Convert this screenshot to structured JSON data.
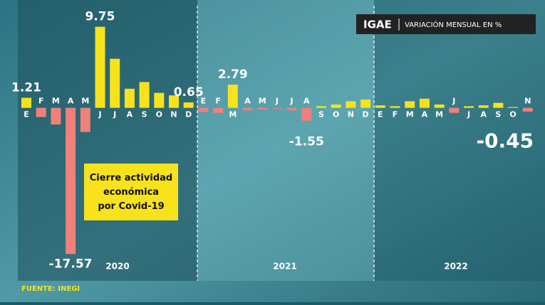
{
  "chart_data": {
    "type": "bar",
    "title": "IGAE",
    "subtitle": "VARIACIÓN MENSUAL EN %",
    "annotation": "Cierre actividad económica por Covid-19",
    "source": "FUENTE: INEGI",
    "groups": [
      "2020",
      "2021",
      "2022"
    ],
    "categories": [
      "E",
      "F",
      "M",
      "A",
      "M",
      "J",
      "J",
      "A",
      "S",
      "O",
      "N",
      "D",
      "E",
      "F",
      "M",
      "A",
      "M",
      "J",
      "J",
      "A",
      "S",
      "O",
      "N",
      "D",
      "E",
      "F",
      "M",
      "A",
      "M",
      "J",
      "J",
      "A",
      "S",
      "O",
      "N"
    ],
    "values": [
      1.21,
      -1.1,
      -2.0,
      -17.57,
      -2.9,
      9.75,
      5.9,
      2.3,
      3.1,
      1.8,
      1.5,
      0.65,
      -0.5,
      -0.6,
      2.79,
      -0.3,
      -0.2,
      -0.1,
      -0.3,
      -1.55,
      0.2,
      0.4,
      0.8,
      1.0,
      0.3,
      0.2,
      0.8,
      1.1,
      0.4,
      -0.6,
      0.2,
      0.3,
      0.6,
      0.1,
      -0.45
    ],
    "value_labels": [
      "1.21",
      null,
      null,
      "-17.57",
      null,
      "9.75",
      null,
      null,
      null,
      null,
      null,
      "0.65",
      null,
      null,
      "2.79",
      null,
      null,
      null,
      null,
      "-1.55",
      null,
      null,
      null,
      null,
      null,
      null,
      null,
      null,
      null,
      null,
      null,
      null,
      null,
      null,
      "-0.45"
    ],
    "positive_color": "#f7e21b",
    "negative_color": "#f0807a",
    "ylim": [
      -19,
      11
    ]
  }
}
